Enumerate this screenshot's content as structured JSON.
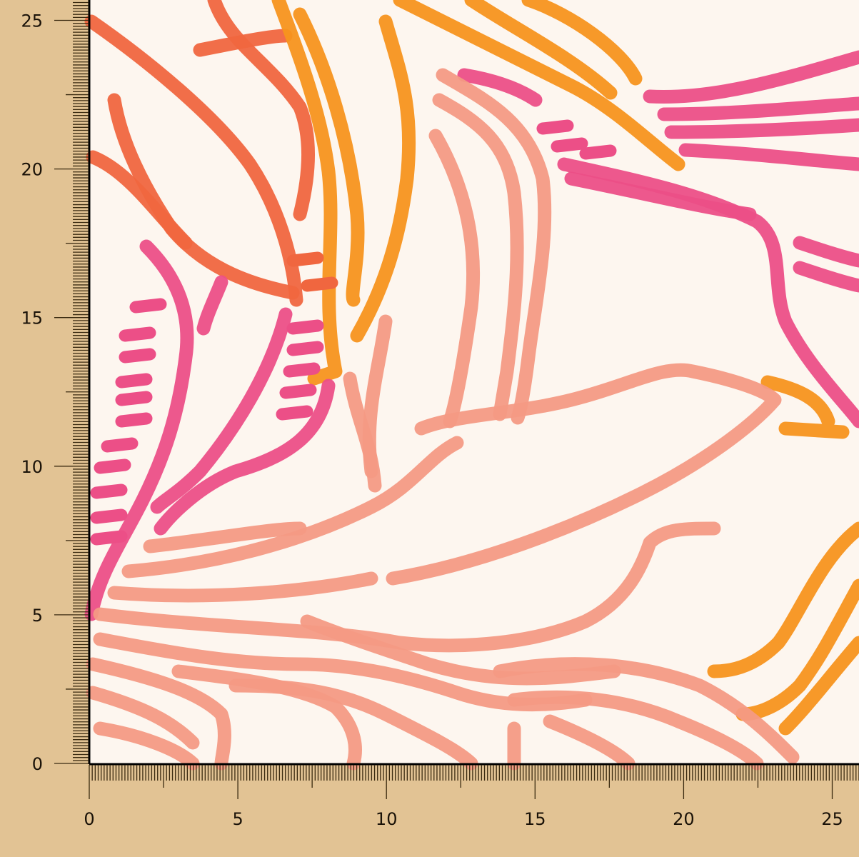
{
  "ruler": {
    "unit_ticks_per_label": 10,
    "x_labels": [
      "0",
      "5",
      "10",
      "15",
      "20",
      "25"
    ],
    "y_labels": [
      "0",
      "5",
      "10",
      "15",
      "20",
      "25"
    ],
    "tick_color": "#3a2a10",
    "background_color": "#e2c394"
  },
  "fabric": {
    "background_color": "#fdf6ef",
    "colors": {
      "orange": "#f7941d",
      "pink": "#ec4f87",
      "salmon": "#f49a84",
      "coral": "#f0663f"
    }
  }
}
